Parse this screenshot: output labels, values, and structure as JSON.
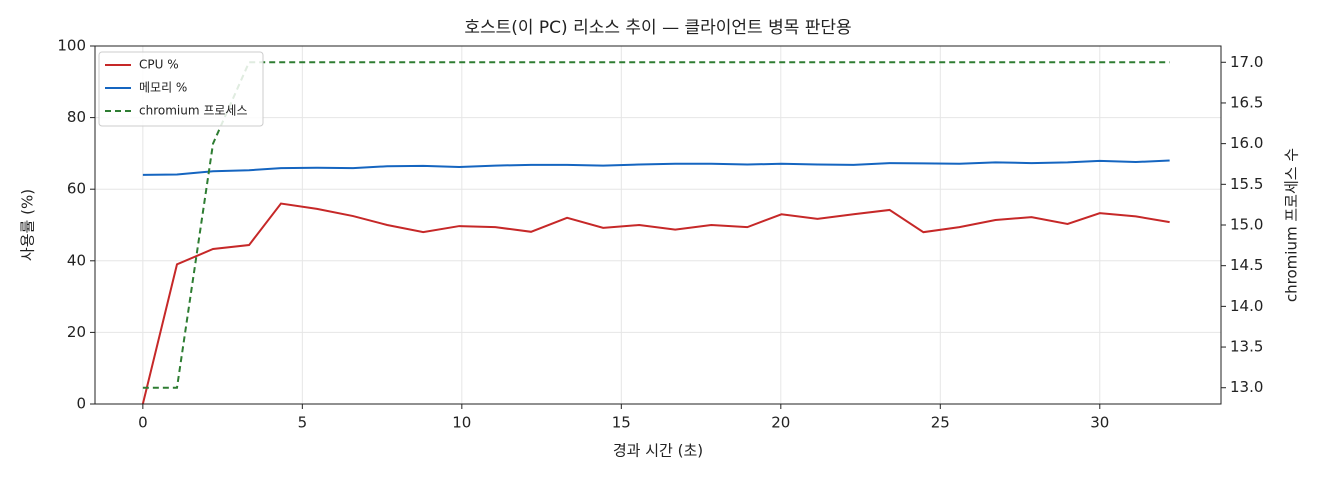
{
  "chart_data": {
    "type": "line",
    "title": "호스트(이 PC) 리소스 추이 — 클라이언트 병목 판단용",
    "x_label": "경과 시간 (초)",
    "y_label": "사용률 (%)",
    "y2_label": "chromium 프로세스 수",
    "x": [
      0,
      1.07,
      2.2,
      3.33,
      4.33,
      5.46,
      6.59,
      7.66,
      8.79,
      9.92,
      11.05,
      12.17,
      13.3,
      14.43,
      15.56,
      16.69,
      17.82,
      18.95,
      20.02,
      21.15,
      22.28,
      23.41,
      24.47,
      25.6,
      26.73,
      27.86,
      28.99,
      30.0,
      31.13,
      32.19
    ],
    "series": [
      {
        "name": "CPU %",
        "color": "#c62828",
        "linestyle": "solid",
        "axis": "y",
        "values": [
          0,
          39,
          43.3,
          44.4,
          56,
          54.5,
          52.5,
          50,
          48,
          49.7,
          49.4,
          48.1,
          52,
          49.2,
          50,
          48.7,
          50,
          49.4,
          53,
          51.7,
          53,
          54.2,
          48,
          49.4,
          51.4,
          52.2,
          50.3,
          53.3,
          52.4,
          50.8
        ]
      },
      {
        "name": "메모리 %",
        "color": "#1565c0",
        "linestyle": "solid",
        "axis": "y",
        "values": [
          64.0,
          64.1,
          65,
          65.3,
          65.9,
          66,
          65.9,
          66.4,
          66.5,
          66.2,
          66.6,
          66.8,
          66.8,
          66.6,
          66.9,
          67.1,
          67.1,
          66.9,
          67.1,
          66.9,
          66.8,
          67.3,
          67.2,
          67.1,
          67.5,
          67.3,
          67.5,
          67.9,
          67.6,
          68.0
        ]
      },
      {
        "name": "chromium 프로세스",
        "color": "#2e7d32",
        "linestyle": "dashed",
        "axis": "y2",
        "values": [
          13,
          13,
          16,
          17,
          17,
          17,
          17,
          17,
          17,
          17,
          17,
          17,
          17,
          17,
          17,
          17,
          17,
          17,
          17,
          17,
          17,
          17,
          17,
          17,
          17,
          17,
          17,
          17,
          17,
          17
        ]
      }
    ],
    "xlim": [
      -1.5,
      33.8
    ],
    "xticks": [
      0,
      5,
      10,
      15,
      20,
      25,
      30
    ],
    "ylim": [
      0,
      100
    ],
    "yticks": [
      0,
      20,
      40,
      60,
      80,
      100
    ],
    "y2lim": [
      12.8,
      17.2
    ],
    "y2ticks": [
      {
        "value": 13,
        "label": "13.0"
      },
      {
        "value": 13.5,
        "label": "13.5"
      },
      {
        "value": 14,
        "label": "14.0"
      },
      {
        "value": 14.5,
        "label": "14.5"
      },
      {
        "value": 15,
        "label": "15.0"
      },
      {
        "value": 15.5,
        "label": "15.5"
      },
      {
        "value": 16,
        "label": "16.0"
      },
      {
        "value": 16.5,
        "label": "16.5"
      },
      {
        "value": 17,
        "label": "17.0"
      }
    ],
    "grid": true,
    "legend": "upper-left"
  }
}
